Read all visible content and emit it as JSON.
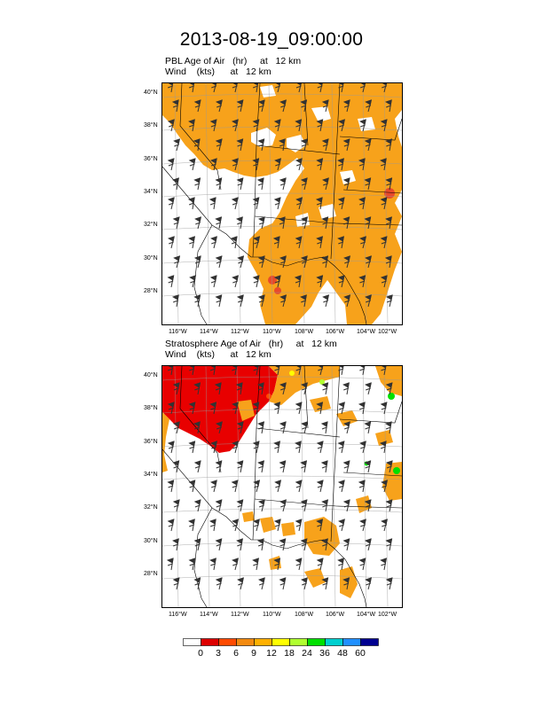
{
  "title": "2013-08-19_09:00:00",
  "panels": [
    {
      "label_line1": "PBL Age of Air   (hr)     at   12 km",
      "label_line2": "Wind    (kts)      at   12 km"
    },
    {
      "label_line1": "Stratosphere Age of Air   (hr)     at   12 km",
      "label_line2": "Wind    (kts)      at   12 km"
    }
  ],
  "lat_labels": [
    "40°N",
    "38°N",
    "36°N",
    "34°N",
    "32°N",
    "30°N",
    "28°N"
  ],
  "lon_labels": [
    "116°W",
    "114°W",
    "112°W",
    "110°W",
    "108°W",
    "106°W",
    "104°W",
    "102°W"
  ],
  "colorbar": {
    "labels": [
      "0",
      "3",
      "6",
      "9",
      "12",
      "18",
      "24",
      "36",
      "48",
      "60"
    ],
    "colors": [
      "#ffffff",
      "#dd0000",
      "#ff4a00",
      "#f38a10",
      "#ffb000",
      "#ffff00",
      "#b0ff30",
      "#00e000",
      "#00d0d0",
      "#2090ff",
      "#000090"
    ]
  },
  "colors": {
    "pbl_fill": "#f7a21b",
    "strat_red": "#e80000",
    "strat_orange": "#f7a21b"
  }
}
